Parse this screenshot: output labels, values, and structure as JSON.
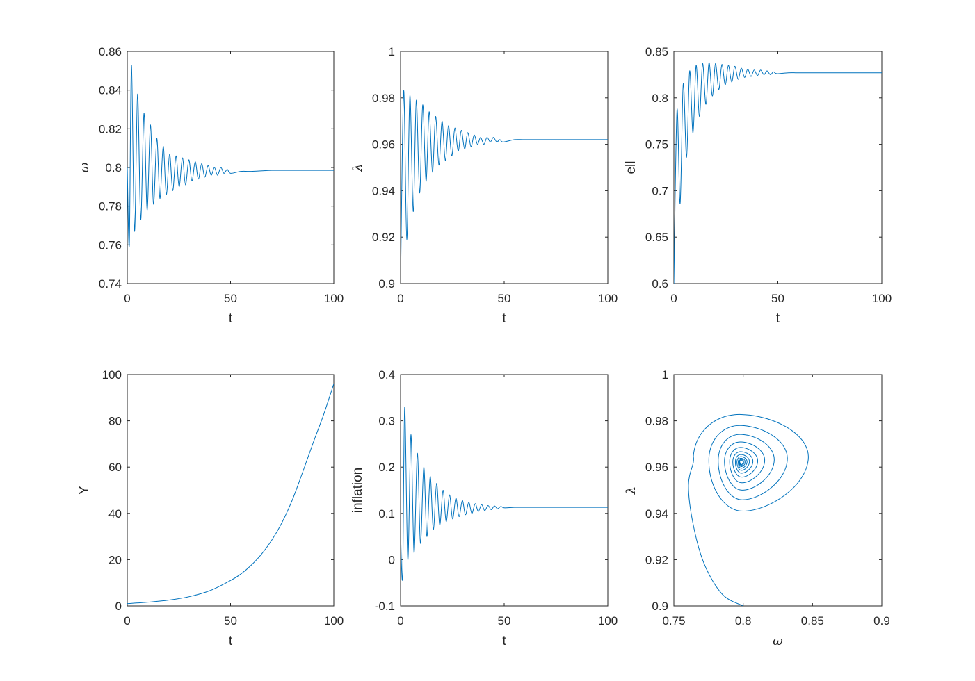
{
  "chart_data": [
    {
      "type": "line",
      "xlabel": "t",
      "ylabel": "ω",
      "xlim": [
        0,
        100
      ],
      "ylim": [
        0.74,
        0.86
      ],
      "xticks": [
        0,
        50,
        100
      ],
      "xtick_labels": [
        "0",
        "50",
        "100"
      ],
      "yticks": [
        0.74,
        0.76,
        0.78,
        0.8,
        0.82,
        0.84,
        0.86
      ],
      "ytick_labels": [
        "0.74",
        "0.76",
        "0.78",
        "0.8",
        "0.82",
        "0.84",
        "0.86"
      ],
      "grid": false,
      "series": [
        {
          "x": [
            0,
            1,
            2,
            3.5,
            5,
            6.5,
            8.1,
            9.6,
            11.2,
            12.7,
            14.3,
            15.8,
            17.4,
            18.9,
            20.5,
            22,
            23.6,
            25.1,
            26.7,
            28.2,
            29.8,
            31.3,
            32.9,
            34.4,
            36,
            37.5,
            39.1,
            40.6,
            42.2,
            43.7,
            45.3,
            46.8,
            48.4,
            50,
            55,
            60,
            70,
            80,
            100
          ],
          "y": [
            0.8,
            0.76,
            0.853,
            0.767,
            0.838,
            0.773,
            0.828,
            0.778,
            0.822,
            0.781,
            0.815,
            0.784,
            0.811,
            0.786,
            0.807,
            0.788,
            0.806,
            0.79,
            0.805,
            0.791,
            0.804,
            0.793,
            0.803,
            0.794,
            0.802,
            0.795,
            0.801,
            0.796,
            0.8,
            0.796,
            0.8,
            0.797,
            0.799,
            0.797,
            0.798,
            0.798,
            0.7985,
            0.7985,
            0.7985
          ]
        }
      ]
    },
    {
      "type": "line",
      "xlabel": "t",
      "ylabel": "λ",
      "xlim": [
        0,
        100
      ],
      "ylim": [
        0.9,
        1.0
      ],
      "xticks": [
        0,
        50,
        100
      ],
      "xtick_labels": [
        "0",
        "50",
        "100"
      ],
      "yticks": [
        0.9,
        0.92,
        0.94,
        0.96,
        0.98,
        1.0
      ],
      "ytick_labels": [
        "0.9",
        "0.92",
        "0.94",
        "0.96",
        "0.98",
        "1"
      ],
      "grid": false,
      "series": [
        {
          "x": [
            0,
            1.5,
            3,
            4.5,
            6.1,
            7.6,
            9.2,
            10.7,
            12.3,
            13.8,
            15.4,
            16.9,
            18.5,
            20,
            21.6,
            23.1,
            24.7,
            26.2,
            27.8,
            29.3,
            30.9,
            32.4,
            34,
            35.5,
            37.1,
            38.6,
            40.2,
            41.7,
            43.3,
            44.8,
            46.4,
            47.9,
            49.5,
            55,
            60,
            70,
            100
          ],
          "y": [
            0.9,
            0.983,
            0.919,
            0.981,
            0.931,
            0.979,
            0.939,
            0.977,
            0.944,
            0.974,
            0.948,
            0.972,
            0.951,
            0.97,
            0.953,
            0.968,
            0.955,
            0.967,
            0.957,
            0.966,
            0.958,
            0.965,
            0.959,
            0.964,
            0.96,
            0.963,
            0.96,
            0.963,
            0.961,
            0.963,
            0.961,
            0.962,
            0.961,
            0.962,
            0.962,
            0.962,
            0.962
          ]
        }
      ]
    },
    {
      "type": "line",
      "xlabel": "t",
      "ylabel": "ell",
      "xlim": [
        0,
        100
      ],
      "ylim": [
        0.6,
        0.85
      ],
      "xticks": [
        0,
        50,
        100
      ],
      "xtick_labels": [
        "0",
        "50",
        "100"
      ],
      "yticks": [
        0.6,
        0.65,
        0.7,
        0.75,
        0.8,
        0.85
      ],
      "ytick_labels": [
        "0.6",
        "0.65",
        "0.7",
        "0.75",
        "0.8",
        "0.85"
      ],
      "grid": false,
      "series": [
        {
          "x": [
            0,
            1.5,
            3,
            4.5,
            6.1,
            7.6,
            9.2,
            10.7,
            12.3,
            13.8,
            15.4,
            16.9,
            18.5,
            20,
            21.6,
            23.1,
            24.7,
            26.2,
            27.8,
            29.3,
            30.9,
            32.4,
            34,
            35.5,
            37.1,
            38.6,
            40.2,
            41.7,
            43.3,
            44.8,
            46.4,
            47.9,
            49.5,
            55,
            60,
            70,
            100
          ],
          "y": [
            0.6,
            0.787,
            0.686,
            0.815,
            0.736,
            0.829,
            0.762,
            0.835,
            0.78,
            0.837,
            0.793,
            0.838,
            0.802,
            0.837,
            0.809,
            0.836,
            0.814,
            0.835,
            0.817,
            0.834,
            0.82,
            0.832,
            0.822,
            0.831,
            0.823,
            0.83,
            0.824,
            0.83,
            0.825,
            0.829,
            0.825,
            0.828,
            0.826,
            0.827,
            0.827,
            0.827,
            0.827
          ]
        }
      ]
    },
    {
      "type": "line",
      "xlabel": "t",
      "ylabel": "Y",
      "xlim": [
        0,
        100
      ],
      "ylim": [
        0,
        100
      ],
      "xticks": [
        0,
        50,
        100
      ],
      "xtick_labels": [
        "0",
        "50",
        "100"
      ],
      "yticks": [
        0,
        20,
        40,
        60,
        80,
        100
      ],
      "ytick_labels": [
        "0",
        "20",
        "40",
        "60",
        "80",
        "100"
      ],
      "grid": false,
      "series": [
        {
          "x": [
            0,
            10,
            20,
            30,
            40,
            50,
            55,
            60,
            65,
            70,
            75,
            80,
            85,
            90,
            95,
            100
          ],
          "y": [
            1.0,
            1.6,
            2.5,
            4.0,
            6.6,
            11.0,
            13.8,
            17.6,
            22.4,
            28.5,
            36.2,
            46.0,
            58.0,
            70.5,
            82.5,
            96.0
          ]
        }
      ]
    },
    {
      "type": "line",
      "xlabel": "t",
      "ylabel": "inflation",
      "xlim": [
        0,
        100
      ],
      "ylim": [
        -0.1,
        0.4
      ],
      "xticks": [
        0,
        50,
        100
      ],
      "xtick_labels": [
        "0",
        "50",
        "100"
      ],
      "yticks": [
        -0.1,
        0,
        0.1,
        0.2,
        0.3,
        0.4
      ],
      "ytick_labels": [
        "-0.1",
        "0",
        "0.1",
        "0.2",
        "0.3",
        "0.4"
      ],
      "grid": false,
      "series": [
        {
          "x": [
            0,
            1,
            2,
            3.5,
            5,
            6.5,
            8.1,
            9.6,
            11.2,
            12.7,
            14.3,
            15.8,
            17.4,
            18.9,
            20.5,
            22,
            23.6,
            25.1,
            26.7,
            28.2,
            29.8,
            31.3,
            32.9,
            34.4,
            36,
            37.5,
            39.1,
            40.6,
            42.2,
            43.7,
            45.3,
            46.8,
            48.4,
            50,
            55,
            60,
            70,
            100
          ],
          "y": [
            0.06,
            -0.035,
            0.33,
            0.0,
            0.27,
            0.015,
            0.23,
            0.035,
            0.2,
            0.05,
            0.18,
            0.065,
            0.165,
            0.075,
            0.15,
            0.082,
            0.14,
            0.088,
            0.133,
            0.093,
            0.128,
            0.097,
            0.124,
            0.1,
            0.121,
            0.104,
            0.119,
            0.106,
            0.117,
            0.108,
            0.116,
            0.11,
            0.115,
            0.112,
            0.113,
            0.113,
            0.113,
            0.113
          ]
        }
      ]
    },
    {
      "type": "line",
      "xlabel": "ω",
      "ylabel": "λ",
      "xlim": [
        0.75,
        0.9
      ],
      "ylim": [
        0.9,
        1.0
      ],
      "xticks": [
        0.75,
        0.8,
        0.85,
        0.9
      ],
      "xtick_labels": [
        "0.75",
        "0.8",
        "0.85",
        "0.9"
      ],
      "yticks": [
        0.9,
        0.92,
        0.94,
        0.96,
        0.98,
        1.0
      ],
      "ytick_labels": [
        "0.9",
        "0.92",
        "0.94",
        "0.96",
        "0.98",
        "1"
      ],
      "grid": false,
      "orbit": {
        "start": [
          0.8,
          0.9
        ],
        "center": [
          0.7985,
          0.962
        ],
        "ring_radii_omega": [
          0.046,
          0.031,
          0.022,
          0.016,
          0.011,
          0.008,
          0.0055,
          0.004,
          0.0028,
          0.002,
          0.0014,
          0.001
        ],
        "ring_radii_lambda": [
          0.022,
          0.017,
          0.013,
          0.0095,
          0.007,
          0.005,
          0.0037,
          0.0027,
          0.002,
          0.0014,
          0.001,
          0.0007
        ]
      }
    }
  ]
}
